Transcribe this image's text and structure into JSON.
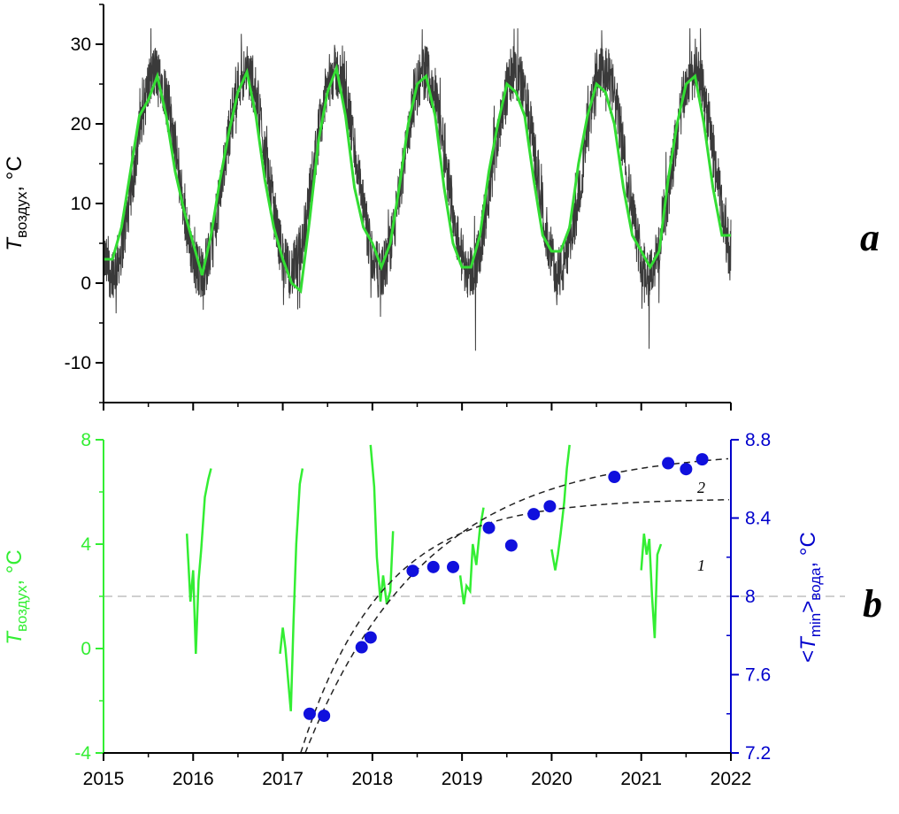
{
  "chart_data": [
    {
      "panel": "a",
      "type": "line",
      "ylabel": {
        "main": "T",
        "sub": "воздух",
        "unit": ", °C"
      },
      "xlim": [
        2015,
        2022
      ],
      "ylim": [
        -15,
        35
      ],
      "yticks": [
        -10,
        0,
        10,
        20,
        30
      ],
      "xticks": [
        2015,
        2016,
        2017,
        2018,
        2019,
        2020,
        2021,
        2022
      ],
      "series": [
        {
          "style": "daily air temperature (dark gray, noisy)",
          "color": "#3a3a3a",
          "annual_amplitude": 12.5,
          "annual_mean": 14,
          "noise_amplitude": 3.5
        },
        {
          "style": "smoothed air temperature (green)",
          "color": "#33dd33",
          "x": [
            2015.0,
            2015.1,
            2015.2,
            2015.3,
            2015.4,
            2015.5,
            2015.6,
            2015.7,
            2015.8,
            2015.9,
            2016.0,
            2016.1,
            2016.2,
            2016.3,
            2016.4,
            2016.5,
            2016.6,
            2016.7,
            2016.8,
            2016.9,
            2017.0,
            2017.1,
            2017.2,
            2017.3,
            2017.4,
            2017.5,
            2017.6,
            2017.7,
            2017.8,
            2017.9,
            2018.0,
            2018.1,
            2018.2,
            2018.3,
            2018.4,
            2018.5,
            2018.6,
            2018.7,
            2018.8,
            2018.9,
            2019.0,
            2019.1,
            2019.2,
            2019.3,
            2019.4,
            2019.5,
            2019.6,
            2019.7,
            2019.8,
            2019.9,
            2020.0,
            2020.1,
            2020.2,
            2020.3,
            2020.4,
            2020.5,
            2020.6,
            2020.7,
            2020.8,
            2020.9,
            2021.0,
            2021.1,
            2021.2,
            2021.3,
            2021.4,
            2021.5,
            2021.6,
            2021.7,
            2021.8,
            2021.9,
            2022.0
          ],
          "y": [
            3,
            3,
            7,
            14,
            21,
            23,
            26,
            21,
            14,
            9,
            5,
            1,
            6,
            13,
            19,
            24,
            26.5,
            21,
            13,
            7,
            3,
            0,
            -1,
            8,
            18,
            24,
            27,
            21,
            12,
            7,
            5,
            2,
            5,
            12,
            20,
            25,
            26,
            21,
            12,
            5,
            2,
            2,
            6,
            14,
            20,
            25,
            24,
            21,
            13,
            6,
            4,
            4,
            7,
            15,
            21,
            25,
            24,
            20,
            12,
            6,
            4,
            2,
            4,
            13,
            20,
            25,
            26,
            20,
            12,
            6,
            6
          ]
        }
      ]
    },
    {
      "panel": "b",
      "type": "line+scatter",
      "xlim": [
        2015,
        2022
      ],
      "xticks": [
        2015,
        2016,
        2017,
        2018,
        2019,
        2020,
        2021,
        2022
      ],
      "y_left": {
        "label": {
          "main": "T",
          "sub": "воздух",
          "unit": ", °C"
        },
        "color": "#33ee33",
        "ylim": [
          -4,
          8
        ],
        "ticks": [
          -4,
          0,
          4,
          8
        ]
      },
      "y_right": {
        "label": {
          "lt": "<",
          "main": "T",
          "sub1": "min",
          "gt": ">",
          "sub2": "вода",
          "unit": ", °C"
        },
        "color": "#0000cc",
        "ylim": [
          7.2,
          8.8
        ],
        "ticks": [
          "7.2",
          "7.6",
          "8",
          "8.4",
          "8.8"
        ],
        "tick_values": [
          7.2,
          7.6,
          8.0,
          8.4,
          8.8
        ]
      },
      "reference_line": {
        "y_right": 8.0,
        "style": "dashed light gray"
      },
      "green_segments": [
        {
          "x": [
            2015.93,
            2015.97,
            2016.0,
            2016.03,
            2016.06,
            2016.09,
            2016.13,
            2016.17,
            2016.2
          ],
          "y": [
            4.4,
            1.8,
            3.0,
            -0.2,
            2.6,
            3.8,
            5.8,
            6.5,
            6.9
          ]
        },
        {
          "x": [
            2016.97,
            2017.0,
            2017.03,
            2017.06,
            2017.09,
            2017.12,
            2017.15,
            2017.19,
            2017.22
          ],
          "y": [
            -0.2,
            0.8,
            0.0,
            -1.2,
            -2.4,
            1.0,
            4.0,
            6.3,
            6.9
          ]
        },
        {
          "x": [
            2017.98,
            2018.02,
            2018.05,
            2018.09,
            2018.12,
            2018.16,
            2018.2,
            2018.23
          ],
          "y": [
            7.8,
            6.2,
            3.5,
            1.8,
            2.8,
            1.7,
            2.2,
            4.5
          ]
        },
        {
          "x": [
            2018.98,
            2019.02,
            2019.05,
            2019.09,
            2019.12,
            2019.16,
            2019.2,
            2019.24
          ],
          "y": [
            2.8,
            1.7,
            2.4,
            2.2,
            4.0,
            3.2,
            4.6,
            5.4
          ]
        },
        {
          "x": [
            2020.0,
            2020.04,
            2020.07,
            2020.1,
            2020.14,
            2020.17,
            2020.2
          ],
          "y": [
            3.8,
            3.0,
            3.6,
            4.4,
            5.6,
            6.9,
            7.8
          ]
        },
        {
          "x": [
            2021.0,
            2021.03,
            2021.06,
            2021.09,
            2021.12,
            2021.15,
            2021.18,
            2021.22
          ],
          "y": [
            3.0,
            4.4,
            3.6,
            4.2,
            2.0,
            0.4,
            3.6,
            4.0
          ]
        }
      ],
      "water_points": {
        "x": [
          2017.3,
          2017.46,
          2017.88,
          2017.98,
          2018.45,
          2018.68,
          2018.9,
          2019.3,
          2019.55,
          2019.8,
          2019.98,
          2020.7,
          2021.3,
          2021.5,
          2021.68
        ],
        "y": [
          7.4,
          7.39,
          7.74,
          7.79,
          8.13,
          8.15,
          8.15,
          8.35,
          8.26,
          8.42,
          8.46,
          8.61,
          8.68,
          8.65,
          8.7
        ]
      },
      "fit_curves": [
        {
          "label": "1",
          "asymptote": 8.5,
          "y0": 7.2,
          "x0": 2017.2,
          "tau": 0.9
        },
        {
          "label": "2",
          "asymptote": 8.75,
          "y0": 7.2,
          "x0": 2017.25,
          "tau": 1.35
        }
      ]
    }
  ],
  "panel_labels": [
    "a",
    "b"
  ]
}
